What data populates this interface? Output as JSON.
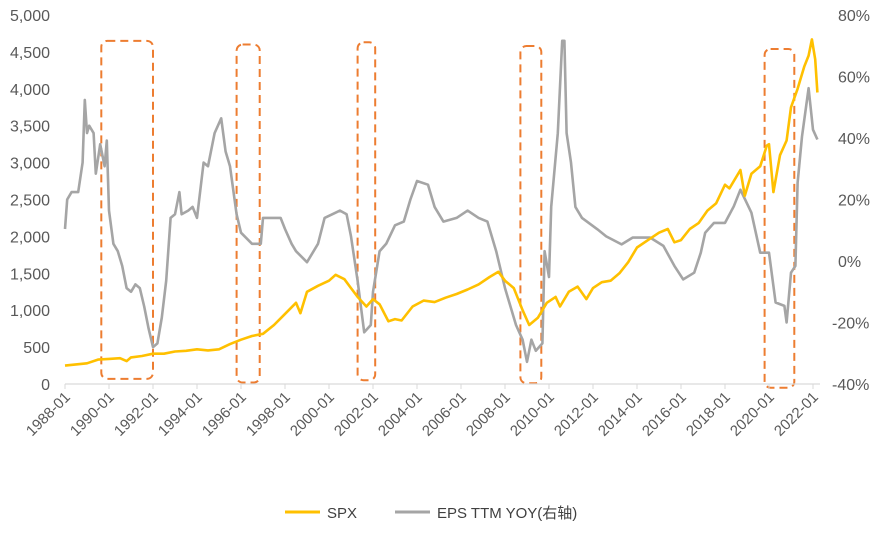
{
  "chart_data": {
    "type": "line",
    "title": "",
    "xlabel": "",
    "ylabel": "",
    "x_range": [
      1988.0,
      2022.5
    ],
    "ylim_left": [
      0,
      5000
    ],
    "ylim_right": [
      -40,
      80
    ],
    "left_ticks": [
      "0",
      "500",
      "1,000",
      "1,500",
      "2,000",
      "2,500",
      "3,000",
      "3,500",
      "4,000",
      "4,500",
      "5,000"
    ],
    "left_tick_values": [
      0,
      500,
      1000,
      1500,
      2000,
      2500,
      3000,
      3500,
      4000,
      4500,
      5000
    ],
    "right_ticks": [
      "-40%",
      "-20%",
      "0%",
      "20%",
      "40%",
      "60%",
      "80%"
    ],
    "right_tick_values": [
      -40,
      -20,
      0,
      20,
      40,
      60,
      80
    ],
    "x_ticks": [
      "1988-01",
      "1990-01",
      "1992-01",
      "1994-01",
      "1996-01",
      "1998-01",
      "2000-01",
      "2002-01",
      "2004-01",
      "2006-01",
      "2008-01",
      "2010-01",
      "2012-01",
      "2014-01",
      "2016-01",
      "2018-01",
      "2020-01",
      "2022-01"
    ],
    "x_tick_values": [
      1988,
      1990,
      1992,
      1994,
      1996,
      1998,
      2000,
      2002,
      2004,
      2006,
      2008,
      2010,
      2012,
      2014,
      2016,
      2018,
      2020,
      2022
    ],
    "grid": false,
    "legend_position": "bottom",
    "series": [
      {
        "name": "SPX",
        "axis": "left",
        "color": "#FFC000",
        "x": [
          1988.0,
          1988.5,
          1989.0,
          1989.5,
          1990.0,
          1990.5,
          1990.8,
          1991.0,
          1991.5,
          1992.0,
          1992.5,
          1993.0,
          1993.5,
          1994.0,
          1994.5,
          1995.0,
          1995.5,
          1996.0,
          1996.5,
          1997.0,
          1997.5,
          1998.0,
          1998.5,
          1998.7,
          1999.0,
          1999.5,
          2000.0,
          2000.3,
          2000.7,
          2001.0,
          2001.3,
          2001.7,
          2002.0,
          2002.3,
          2002.7,
          2003.0,
          2003.3,
          2003.8,
          2004.3,
          2004.8,
          2005.3,
          2005.8,
          2006.3,
          2006.8,
          2007.3,
          2007.7,
          2008.0,
          2008.4,
          2008.8,
          2009.1,
          2009.5,
          2009.9,
          2010.3,
          2010.5,
          2010.9,
          2011.3,
          2011.7,
          2012.0,
          2012.4,
          2012.8,
          2013.2,
          2013.6,
          2014.0,
          2014.5,
          2015.0,
          2015.4,
          2015.7,
          2016.0,
          2016.4,
          2016.8,
          2017.2,
          2017.6,
          2018.0,
          2018.2,
          2018.7,
          2018.9,
          2019.2,
          2019.6,
          2019.9,
          2020.0,
          2020.2,
          2020.5,
          2020.8,
          2021.0,
          2021.3,
          2021.6,
          2021.8,
          2021.95,
          2022.1,
          2022.2
        ],
        "values": [
          250,
          265,
          280,
          330,
          340,
          350,
          310,
          360,
          380,
          410,
          410,
          440,
          450,
          470,
          455,
          470,
          540,
          600,
          650,
          680,
          800,
          950,
          1100,
          960,
          1250,
          1330,
          1400,
          1480,
          1420,
          1300,
          1180,
          1050,
          1150,
          1080,
          850,
          880,
          860,
          1050,
          1130,
          1110,
          1170,
          1220,
          1280,
          1350,
          1450,
          1520,
          1400,
          1300,
          1000,
          800,
          900,
          1100,
          1180,
          1050,
          1250,
          1320,
          1150,
          1300,
          1380,
          1400,
          1500,
          1650,
          1850,
          1950,
          2050,
          2100,
          1920,
          1950,
          2100,
          2180,
          2350,
          2450,
          2700,
          2650,
          2900,
          2550,
          2850,
          2950,
          3230,
          3250,
          2600,
          3100,
          3300,
          3750,
          4000,
          4300,
          4450,
          4670,
          4400,
          3950
        ]
      },
      {
        "name": "EPS TTM YOY(右轴)",
        "axis": "right",
        "color": "#A5A5A5",
        "x": [
          1988.0,
          1988.1,
          1988.3,
          1988.6,
          1988.8,
          1988.9,
          1989.0,
          1989.1,
          1989.3,
          1989.4,
          1989.6,
          1989.8,
          1989.9,
          1990.0,
          1990.2,
          1990.4,
          1990.6,
          1990.8,
          1991.0,
          1991.2,
          1991.4,
          1991.6,
          1991.8,
          1992.0,
          1992.2,
          1992.4,
          1992.6,
          1992.8,
          1993.0,
          1993.2,
          1993.3,
          1993.6,
          1993.8,
          1994.0,
          1994.3,
          1994.5,
          1994.8,
          1995.1,
          1995.3,
          1995.5,
          1995.8,
          1996.0,
          1996.5,
          1996.9,
          1997.0,
          1997.5,
          1997.8,
          1998.0,
          1998.3,
          1998.5,
          1999.0,
          1999.5,
          1999.8,
          2000.5,
          2000.8,
          2001.0,
          2001.3,
          2001.6,
          2001.9,
          2002.0,
          2002.3,
          2002.6,
          2003.0,
          2003.4,
          2003.7,
          2004.0,
          2004.5,
          2004.8,
          2005.2,
          2005.8,
          2006.3,
          2006.8,
          2007.2,
          2007.6,
          2008.0,
          2008.5,
          2008.8,
          2009.0,
          2009.2,
          2009.4,
          2009.7,
          2009.8,
          2010.0,
          2010.1,
          2010.4,
          2010.6,
          2010.7,
          2010.8,
          2011.0,
          2011.2,
          2011.5,
          2012.2,
          2012.6,
          2013.3,
          2013.8,
          2014.6,
          2015.2,
          2015.7,
          2016.1,
          2016.6,
          2016.9,
          2017.1,
          2017.5,
          2018.0,
          2018.4,
          2018.7,
          2019.2,
          2019.6,
          2020.0,
          2020.3,
          2020.7,
          2020.8,
          2021.0,
          2021.2,
          2021.3,
          2021.5,
          2021.8,
          2022.0,
          2022.2
        ],
        "values": [
          10.4,
          20,
          22.4,
          22.4,
          32,
          52.4,
          41.6,
          44,
          41.6,
          28.4,
          38,
          30.8,
          39.2,
          16.4,
          5.6,
          3.2,
          -1.6,
          -8.8,
          -10,
          -7.6,
          -8.8,
          -14.8,
          -22,
          -28,
          -26.8,
          -18.4,
          -6.4,
          14,
          15.2,
          22.4,
          15.2,
          16.4,
          17.6,
          14,
          32,
          30.8,
          41.6,
          46.4,
          35.6,
          30.8,
          15.2,
          9.2,
          5.6,
          5.6,
          14,
          14,
          14,
          10.4,
          5.6,
          3.2,
          -0.4,
          5.6,
          14,
          16.4,
          15.2,
          8,
          -6.4,
          -23.2,
          -20.8,
          -10,
          3.2,
          5.6,
          11.6,
          12.8,
          20,
          26,
          24.8,
          17.6,
          12.8,
          14,
          16.4,
          14,
          12.8,
          3.2,
          -8.8,
          -20.8,
          -25.6,
          -32.8,
          -25.6,
          -29.2,
          -26.8,
          3.2,
          -5.2,
          17.6,
          41.6,
          71.6,
          71.6,
          41.6,
          32,
          17.6,
          14,
          10.3,
          8,
          5.4,
          7.6,
          7.6,
          4.9,
          -1.6,
          -6,
          -3.8,
          2.7,
          9.2,
          12.4,
          12.4,
          17.8,
          23.2,
          15.7,
          2.7,
          2.7,
          -13.5,
          -14.6,
          -20,
          -3.8,
          -1.6,
          25.4,
          40.5,
          56.2,
          42.7,
          39.5
        ]
      }
    ],
    "annotations": {
      "type": "dashed-rounded-rectangles",
      "color": "#ED7D31",
      "regions": [
        {
          "x_start": 1989.65,
          "x_end": 1992.0,
          "y_top": 4650,
          "y_bottom": 70
        },
        {
          "x_start": 1995.8,
          "x_end": 1996.85,
          "y_top": 4600,
          "y_bottom": 20
        },
        {
          "x_start": 2001.3,
          "x_end": 2002.1,
          "y_top": 4630,
          "y_bottom": 50
        },
        {
          "x_start": 2008.7,
          "x_end": 2009.65,
          "y_top": 4580,
          "y_bottom": 10
        },
        {
          "x_start": 2019.8,
          "x_end": 2021.15,
          "y_top": 4540,
          "y_bottom": -50
        }
      ]
    }
  }
}
